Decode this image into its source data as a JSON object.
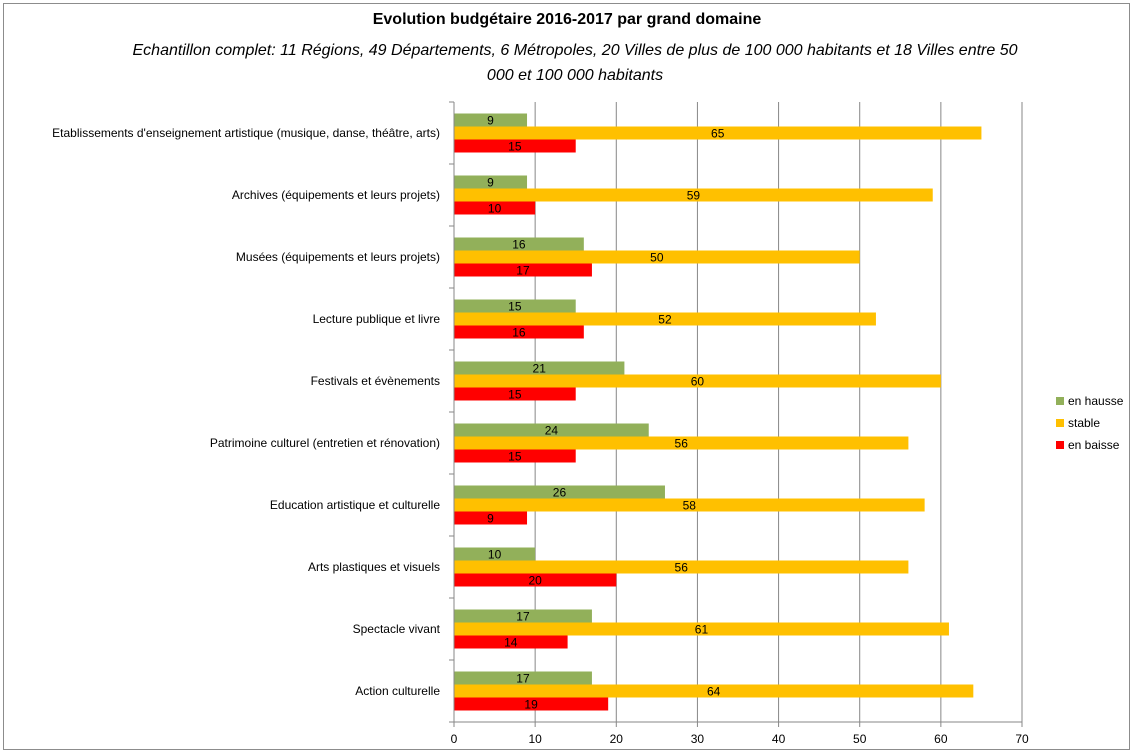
{
  "chart_data": {
    "type": "bar",
    "orientation": "horizontal",
    "title": "Evolution budgétaire 2016-2017 par grand domaine",
    "subtitle": "Echantillon complet: 11 Régions, 49 Départements, 6 Métropoles, 20 Villes de plus de 100 000 habitants et 18 Villes entre 50 000 et 100 000 habitants",
    "categories": [
      "Etablissements d'enseignement artistique (musique, danse, théâtre, arts)",
      "Archives (équipements et leurs projets)",
      "Musées (équipements et leurs projets)",
      "Lecture publique et livre",
      "Festivals et évènements",
      "Patrimoine culturel (entretien et rénovation)",
      "Education artistique et culturelle",
      "Arts plastiques et visuels",
      "Spectacle vivant",
      "Action culturelle"
    ],
    "series": [
      {
        "name": "en hausse",
        "color": "#92b05a",
        "values": [
          9,
          9,
          16,
          15,
          21,
          24,
          26,
          10,
          17,
          17
        ]
      },
      {
        "name": "stable",
        "color": "#ffc000",
        "values": [
          65,
          59,
          50,
          52,
          60,
          56,
          58,
          56,
          61,
          64
        ]
      },
      {
        "name": "en baisse",
        "color": "#ff0000",
        "values": [
          15,
          10,
          17,
          16,
          15,
          15,
          9,
          20,
          14,
          19
        ]
      }
    ],
    "xlim": [
      0,
      70
    ],
    "xticks": [
      0,
      10,
      20,
      30,
      40,
      50,
      60,
      70
    ],
    "grid": true,
    "legend_position": "right"
  }
}
